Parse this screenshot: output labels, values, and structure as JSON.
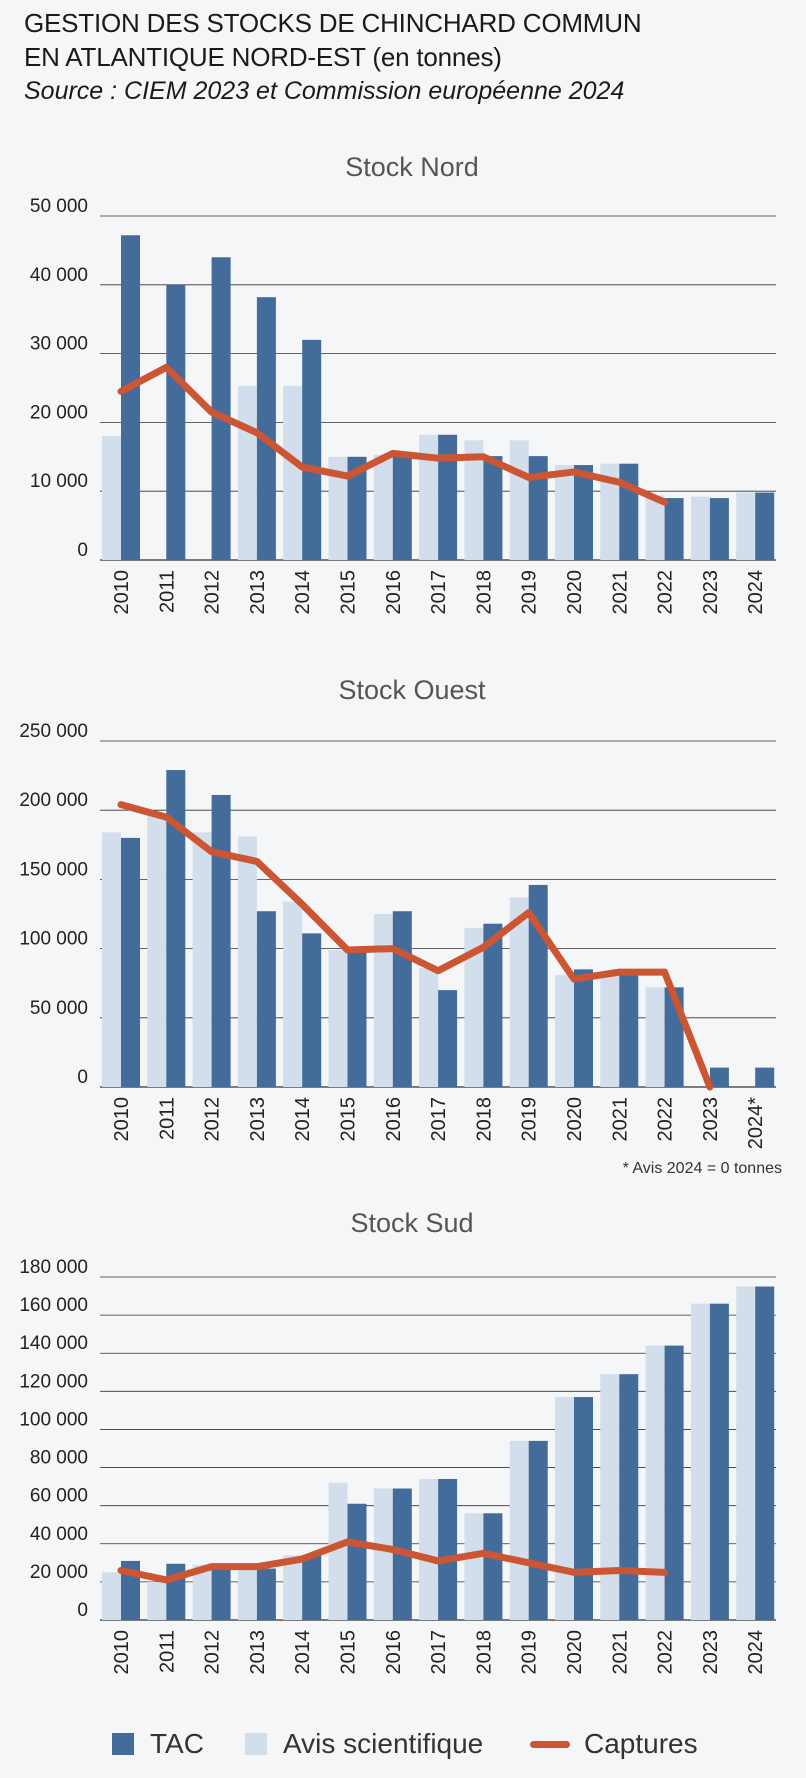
{
  "header": {
    "title_line1": "GESTION DES STOCKS DE CHINCHARD COMMUN",
    "title_line2_main": "EN ATLANTIQUE NORD-EST",
    "title_line2_unit": " (en tonnes)",
    "source": "Source : CIEM 2023 et Commission européenne 2024"
  },
  "colors": {
    "tac": "#436c9b",
    "avis": "#d2deeb",
    "captures": "#cc5533",
    "grid": "#333333",
    "background": "#f5f6f8"
  },
  "legend": {
    "tac": "TAC",
    "avis": "Avis scientifique",
    "captures": "Captures"
  },
  "chart_data": [
    {
      "type": "bar",
      "title": "Stock Nord",
      "categories": [
        "2010",
        "2011",
        "2012",
        "2013",
        "2014",
        "2015",
        "2016",
        "2017",
        "2018",
        "2019",
        "2020",
        "2021",
        "2022",
        "2023",
        "2024"
      ],
      "ylim": [
        0,
        50000
      ],
      "yticks": [
        0,
        10000,
        20000,
        30000,
        40000,
        50000
      ],
      "ytick_labels": [
        "0",
        "10 000",
        "20 000",
        "30 000",
        "40 000",
        "50 000"
      ],
      "series": [
        {
          "name": "Avis scientifique",
          "type": "bar",
          "values": [
            18000,
            0,
            0,
            25300,
            25300,
            15000,
            15300,
            18200,
            17400,
            17400,
            13800,
            14000,
            9400,
            9200,
            9800
          ]
        },
        {
          "name": "TAC",
          "type": "bar",
          "values": [
            47200,
            40000,
            44000,
            38200,
            32000,
            15000,
            15700,
            18200,
            15100,
            15100,
            13800,
            14000,
            9000,
            9000,
            9800
          ]
        },
        {
          "name": "Captures",
          "type": "line",
          "values": [
            24500,
            28000,
            21500,
            18500,
            13500,
            12200,
            15500,
            14800,
            15000,
            12000,
            12800,
            11300,
            8400,
            null,
            null
          ]
        }
      ],
      "note": ""
    },
    {
      "type": "bar",
      "title": "Stock Ouest",
      "categories": [
        "2010",
        "2011",
        "2012",
        "2013",
        "2014",
        "2015",
        "2016",
        "2017",
        "2018",
        "2019",
        "2020",
        "2021",
        "2022",
        "2023",
        "2024*"
      ],
      "ylim": [
        0,
        250000
      ],
      "yticks": [
        0,
        50000,
        100000,
        150000,
        200000,
        250000
      ],
      "ytick_labels": [
        "0",
        "50 000",
        "100 000",
        "150 000",
        "200 000",
        "250 000"
      ],
      "series": [
        {
          "name": "TAC",
          "type": "bar",
          "values": [
            180000,
            229000,
            211000,
            127000,
            111000,
            101000,
            127000,
            70000,
            118000,
            146000,
            85000,
            81000,
            72000,
            14000,
            14000
          ]
        },
        {
          "name": "Avis scientifique",
          "type": "bar",
          "values": [
            184000,
            196000,
            184000,
            181000,
            134000,
            99000,
            125000,
            86000,
            115000,
            137000,
            81000,
            81000,
            72000,
            0,
            0
          ]
        },
        {
          "name": "Captures",
          "type": "line",
          "values": [
            204000,
            195000,
            170000,
            163000,
            132000,
            99000,
            100000,
            84000,
            101000,
            126000,
            78000,
            83000,
            83000,
            0,
            null
          ]
        }
      ],
      "note": "* Avis 2024 = 0 tonnes"
    },
    {
      "type": "bar",
      "title": "Stock Sud",
      "categories": [
        "2010",
        "2011",
        "2012",
        "2013",
        "2014",
        "2015",
        "2016",
        "2017",
        "2018",
        "2019",
        "2020",
        "2021",
        "2022",
        "2023",
        "2024"
      ],
      "ylim": [
        0,
        180000
      ],
      "yticks": [
        0,
        20000,
        40000,
        60000,
        80000,
        100000,
        120000,
        140000,
        160000,
        180000
      ],
      "ytick_labels": [
        "0",
        "20 000",
        "40 000",
        "60 000",
        "80 000",
        "100 000",
        "120 000",
        "140 000",
        "160 000",
        "180 000"
      ],
      "series": [
        {
          "name": "Avis scientifique",
          "type": "bar",
          "values": [
            25000,
            20000,
            29000,
            27000,
            34000,
            72000,
            69000,
            74000,
            56000,
            94000,
            117000,
            129000,
            144000,
            166000,
            175000
          ]
        },
        {
          "name": "TAC",
          "type": "bar",
          "values": [
            31000,
            29500,
            29000,
            27000,
            34000,
            61000,
            69000,
            74000,
            56000,
            94000,
            117000,
            129000,
            144000,
            166000,
            175000
          ]
        },
        {
          "name": "Captures",
          "type": "line",
          "values": [
            26000,
            21000,
            28000,
            28000,
            32000,
            41000,
            37000,
            31000,
            35000,
            30000,
            25000,
            26000,
            25000,
            null,
            null
          ]
        }
      ],
      "note": ""
    }
  ]
}
